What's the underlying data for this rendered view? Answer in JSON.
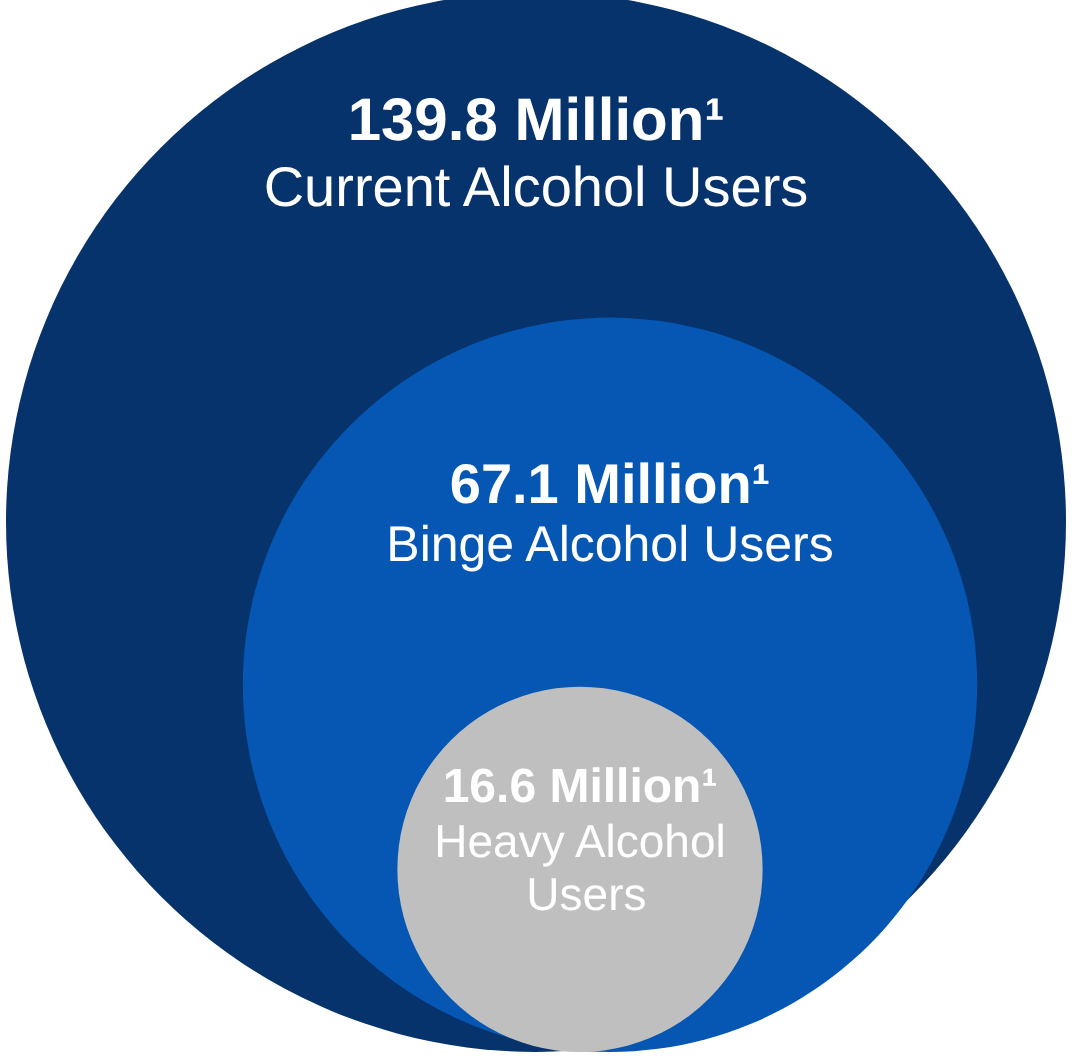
{
  "chart_data": {
    "type": "other",
    "categories": [
      "Current Alcohol Users",
      "Binge Alcohol Users",
      "Heavy Alcohol Users"
    ],
    "values": [
      139.8,
      67.1,
      16.6
    ],
    "value_labels": [
      "139.8 Million¹",
      "67.1 Million¹",
      "16.6 Million¹"
    ],
    "colors": [
      "#06336b",
      "#0557b3",
      "#bfbfbf"
    ]
  }
}
